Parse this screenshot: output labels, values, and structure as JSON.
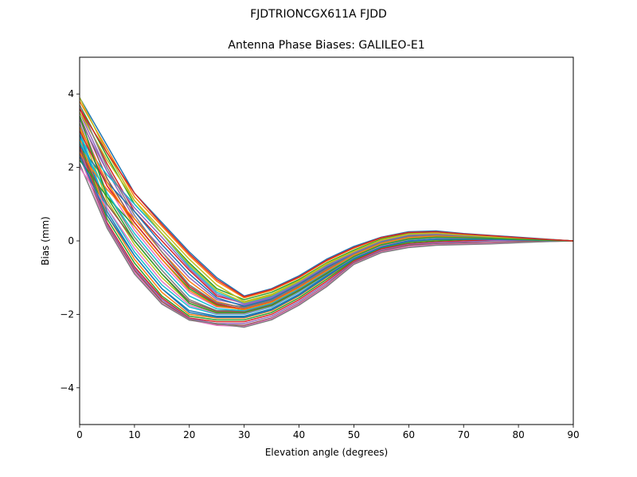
{
  "figure": {
    "suptitle": "FJDTRIONCGX611A FJDD"
  },
  "chart_data": {
    "type": "line",
    "title": "Antenna Phase Biases: GALILEO-E1",
    "xlabel": "Elevation angle (degrees)",
    "ylabel": "Bias (mm)",
    "xlim": [
      0,
      90
    ],
    "ylim": [
      -5,
      5
    ],
    "xticks": [
      0,
      10,
      20,
      30,
      40,
      50,
      60,
      70,
      80,
      90
    ],
    "yticks": [
      -4,
      -2,
      0,
      2,
      4
    ],
    "grid": false,
    "x": [
      0,
      5,
      10,
      15,
      20,
      25,
      30,
      35,
      40,
      45,
      50,
      55,
      60,
      65,
      70,
      75,
      80,
      85,
      90
    ],
    "colors": [
      "#1f77b4",
      "#ff7f0e",
      "#2ca02c",
      "#d62728",
      "#9467bd",
      "#8c564b",
      "#e377c2",
      "#7f7f7f",
      "#bcbd22",
      "#17becf"
    ],
    "series": [
      {
        "values": [
          3.9,
          2.6,
          1.3,
          0.5,
          -0.3,
          -1.0,
          -1.5,
          -1.3,
          -0.95,
          -0.5,
          -0.15,
          0.1,
          0.25,
          0.27,
          0.2,
          0.15,
          0.1,
          0.05,
          0.0
        ]
      },
      {
        "values": [
          3.8,
          2.5,
          1.2,
          0.4,
          -0.4,
          -1.1,
          -1.55,
          -1.35,
          -1.0,
          -0.55,
          -0.2,
          0.08,
          0.22,
          0.24,
          0.18,
          0.13,
          0.08,
          0.04,
          0.0
        ]
      },
      {
        "values": [
          3.7,
          2.3,
          1.0,
          0.2,
          -0.6,
          -1.3,
          -1.6,
          -1.4,
          -1.05,
          -0.6,
          -0.25,
          0.05,
          0.2,
          0.22,
          0.17,
          0.12,
          0.08,
          0.04,
          0.0
        ]
      },
      {
        "values": [
          3.6,
          2.1,
          0.8,
          0.0,
          -0.8,
          -1.5,
          -1.7,
          -1.5,
          -1.1,
          -0.65,
          -0.3,
          0.02,
          0.17,
          0.2,
          0.15,
          0.11,
          0.07,
          0.03,
          0.0
        ]
      },
      {
        "values": [
          3.5,
          1.9,
          0.6,
          -0.2,
          -1.0,
          -1.6,
          -1.75,
          -1.55,
          -1.15,
          -0.7,
          -0.32,
          0.0,
          0.15,
          0.18,
          0.14,
          0.1,
          0.06,
          0.03,
          0.0
        ]
      },
      {
        "values": [
          3.4,
          1.7,
          0.5,
          -0.4,
          -1.2,
          -1.7,
          -1.8,
          -1.6,
          -1.2,
          -0.75,
          -0.35,
          -0.02,
          0.12,
          0.16,
          0.12,
          0.09,
          0.06,
          0.03,
          0.0
        ]
      },
      {
        "values": [
          3.3,
          1.5,
          0.3,
          -0.6,
          -1.4,
          -1.8,
          -1.85,
          -1.65,
          -1.25,
          -0.8,
          -0.38,
          -0.05,
          0.1,
          0.14,
          0.11,
          0.08,
          0.05,
          0.02,
          0.0
        ]
      },
      {
        "values": [
          3.2,
          1.3,
          0.1,
          -0.8,
          -1.6,
          -1.9,
          -1.9,
          -1.7,
          -1.3,
          -0.85,
          -0.4,
          -0.08,
          0.08,
          0.12,
          0.1,
          0.07,
          0.05,
          0.02,
          0.0
        ]
      },
      {
        "values": [
          3.1,
          1.1,
          -0.1,
          -1.0,
          -1.7,
          -1.95,
          -1.95,
          -1.75,
          -1.35,
          -0.9,
          -0.42,
          -0.1,
          0.05,
          0.1,
          0.09,
          0.07,
          0.04,
          0.02,
          0.0
        ]
      },
      {
        "values": [
          3.0,
          0.9,
          -0.3,
          -1.2,
          -1.8,
          -2.0,
          -2.0,
          -1.8,
          -1.4,
          -0.92,
          -0.45,
          -0.12,
          0.03,
          0.08,
          0.08,
          0.06,
          0.04,
          0.02,
          0.0
        ]
      },
      {
        "values": [
          2.9,
          0.8,
          -0.4,
          -1.3,
          -1.9,
          -2.05,
          -2.05,
          -1.85,
          -1.45,
          -0.95,
          -0.48,
          -0.15,
          0.0,
          0.05,
          0.06,
          0.05,
          0.03,
          0.01,
          0.0
        ]
      },
      {
        "values": [
          2.8,
          0.7,
          -0.5,
          -1.4,
          -2.0,
          -2.1,
          -2.1,
          -1.9,
          -1.5,
          -1.0,
          -0.5,
          -0.18,
          -0.02,
          0.03,
          0.05,
          0.04,
          0.03,
          0.01,
          0.0
        ]
      },
      {
        "values": [
          2.7,
          0.6,
          -0.6,
          -1.5,
          -2.05,
          -2.15,
          -2.15,
          -1.95,
          -1.55,
          -1.05,
          -0.52,
          -0.2,
          -0.05,
          0.0,
          0.03,
          0.03,
          0.02,
          0.01,
          0.0
        ]
      },
      {
        "values": [
          2.6,
          0.5,
          -0.7,
          -1.55,
          -2.1,
          -2.2,
          -2.2,
          -2.0,
          -1.6,
          -1.1,
          -0.55,
          -0.22,
          -0.08,
          -0.03,
          0.0,
          0.02,
          0.02,
          0.01,
          0.0
        ]
      },
      {
        "values": [
          2.5,
          0.45,
          -0.75,
          -1.6,
          -2.12,
          -2.25,
          -2.25,
          -2.05,
          -1.65,
          -1.15,
          -0.58,
          -0.25,
          -0.1,
          -0.05,
          -0.03,
          0.0,
          0.01,
          0.0,
          0.0
        ]
      },
      {
        "values": [
          2.4,
          0.4,
          -0.8,
          -1.65,
          -2.14,
          -2.28,
          -2.3,
          -2.1,
          -1.7,
          -1.2,
          -0.6,
          -0.28,
          -0.12,
          -0.08,
          -0.06,
          -0.04,
          -0.02,
          -0.01,
          0.0
        ]
      },
      {
        "values": [
          2.3,
          0.38,
          -0.85,
          -1.7,
          -2.15,
          -2.3,
          -2.33,
          -2.12,
          -1.72,
          -1.22,
          -0.62,
          -0.3,
          -0.15,
          -0.1,
          -0.08,
          -0.06,
          -0.04,
          -0.02,
          0.0
        ]
      },
      {
        "values": [
          2.1,
          0.35,
          -0.9,
          -1.72,
          -2.16,
          -2.25,
          -2.35,
          -2.15,
          -1.75,
          -1.25,
          -0.64,
          -0.32,
          -0.18,
          -0.12,
          -0.1,
          -0.08,
          -0.05,
          -0.02,
          0.0
        ]
      },
      {
        "values": [
          3.5,
          2.2,
          1.1,
          0.3,
          -0.5,
          -1.2,
          -1.65,
          -1.45,
          -1.08,
          -0.62,
          -0.28,
          0.03,
          0.19,
          0.21,
          0.16,
          0.11,
          0.07,
          0.03,
          0.0
        ]
      },
      {
        "values": [
          2.8,
          1.8,
          1.0,
          0.2,
          -0.7,
          -1.4,
          -1.7,
          -1.52,
          -1.12,
          -0.68,
          -0.31,
          0.01,
          0.16,
          0.19,
          0.14,
          0.1,
          0.06,
          0.03,
          0.0
        ]
      },
      {
        "values": [
          2.6,
          1.6,
          0.8,
          -0.1,
          -0.9,
          -1.55,
          -1.78,
          -1.58,
          -1.18,
          -0.72,
          -0.34,
          -0.03,
          0.13,
          0.17,
          0.13,
          0.09,
          0.06,
          0.03,
          0.0
        ]
      },
      {
        "values": [
          2.4,
          1.4,
          0.6,
          -0.3,
          -1.1,
          -1.65,
          -1.83,
          -1.63,
          -1.23,
          -0.78,
          -0.37,
          -0.06,
          0.11,
          0.15,
          0.12,
          0.08,
          0.05,
          0.02,
          0.0
        ]
      },
      {
        "values": [
          2.2,
          1.2,
          0.4,
          -0.5,
          -1.3,
          -1.75,
          -1.88,
          -1.68,
          -1.28,
          -0.82,
          -0.39,
          -0.09,
          0.09,
          0.13,
          0.1,
          0.07,
          0.05,
          0.02,
          0.0
        ]
      },
      {
        "values": [
          3.0,
          1.5,
          0.5,
          -0.4,
          -1.25,
          -1.72,
          -1.86,
          -1.66,
          -1.26,
          -0.81,
          -0.38,
          -0.07,
          0.1,
          0.14,
          0.11,
          0.08,
          0.05,
          0.02,
          0.0
        ]
      },
      {
        "values": [
          3.3,
          1.9,
          0.9,
          0.1,
          -0.75,
          -1.45,
          -1.72,
          -1.54,
          -1.14,
          -0.69,
          -0.32,
          0.0,
          0.16,
          0.19,
          0.14,
          0.1,
          0.06,
          0.03,
          0.0
        ]
      },
      {
        "values": [
          2.5,
          1.0,
          0.0,
          -0.9,
          -1.65,
          -1.92,
          -1.93,
          -1.73,
          -1.33,
          -0.87,
          -0.41,
          -0.1,
          0.06,
          0.11,
          0.09,
          0.07,
          0.04,
          0.02,
          0.0
        ]
      },
      {
        "values": [
          2.0,
          0.9,
          -0.2,
          -1.1,
          -1.75,
          -1.98,
          -1.98,
          -1.78,
          -1.38,
          -0.91,
          -0.44,
          -0.13,
          0.04,
          0.09,
          0.08,
          0.06,
          0.04,
          0.02,
          0.0
        ]
      },
      {
        "values": [
          3.7,
          2.0,
          0.7,
          -0.3,
          -1.2,
          -1.68,
          -1.82,
          -1.62,
          -1.22,
          -0.77,
          -0.36,
          -0.04,
          0.12,
          0.16,
          0.12,
          0.09,
          0.05,
          0.03,
          0.0
        ]
      },
      {
        "values": [
          3.9,
          2.4,
          1.1,
          0.2,
          -0.65,
          -1.35,
          -1.68,
          -1.48,
          -1.1,
          -0.64,
          -0.29,
          0.02,
          0.18,
          0.21,
          0.16,
          0.11,
          0.07,
          0.03,
          0.0
        ]
      },
      {
        "values": [
          2.7,
          1.3,
          0.2,
          -0.7,
          -1.5,
          -1.85,
          -1.9,
          -1.7,
          -1.3,
          -0.84,
          -0.4,
          -0.08,
          0.08,
          0.12,
          0.1,
          0.07,
          0.05,
          0.02,
          0.0
        ]
      },
      {
        "values": [
          2.3,
          0.7,
          -0.4,
          -1.3,
          -1.95,
          -2.08,
          -2.08,
          -1.88,
          -1.48,
          -0.98,
          -0.49,
          -0.17,
          -0.01,
          0.04,
          0.05,
          0.04,
          0.03,
          0.01,
          0.0
        ]
      },
      {
        "values": [
          3.1,
          1.6,
          0.4,
          -0.5,
          -1.35,
          -1.78,
          -1.87,
          -1.67,
          -1.27,
          -0.82,
          -0.39,
          -0.07,
          0.09,
          0.13,
          0.1,
          0.07,
          0.05,
          0.02,
          0.0
        ]
      },
      {
        "values": [
          3.4,
          1.2,
          0.0,
          -0.9,
          -1.7,
          -1.96,
          -1.96,
          -1.76,
          -1.36,
          -0.9,
          -0.43,
          -0.11,
          0.05,
          0.1,
          0.09,
          0.07,
          0.04,
          0.02,
          0.0
        ]
      },
      {
        "values": [
          3.6,
          2.4,
          1.3,
          0.45,
          -0.35,
          -1.05,
          -1.52,
          -1.32,
          -0.98,
          -0.53,
          -0.18,
          0.09,
          0.23,
          0.25,
          0.19,
          0.14,
          0.09,
          0.04,
          0.0
        ]
      }
    ]
  }
}
